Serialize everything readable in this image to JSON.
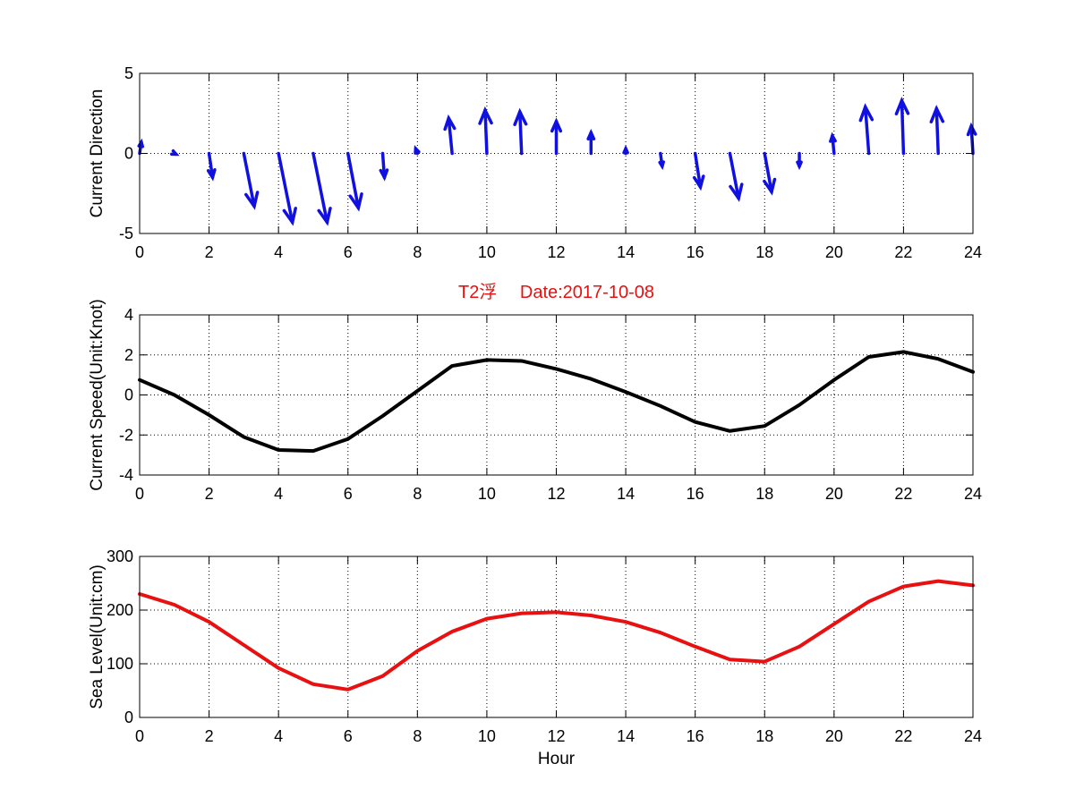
{
  "chart_data": [
    {
      "type": "quiver",
      "title": "",
      "xlabel": "",
      "ylabel": "Current Direction",
      "xlim": [
        0,
        24
      ],
      "ylim": [
        -5,
        5
      ],
      "xticks": [
        "0",
        "2",
        "4",
        "6",
        "8",
        "10",
        "12",
        "14",
        "16",
        "18",
        "20",
        "22",
        "24"
      ],
      "yticks": [
        "-5",
        "0",
        "5"
      ],
      "grid": true,
      "color": "#1010e0",
      "series": [
        {
          "x": [
            0,
            1,
            2,
            3,
            4,
            5,
            6,
            7,
            8,
            9,
            10,
            11,
            12,
            13,
            14,
            15,
            16,
            17,
            18,
            19,
            20,
            21,
            22,
            23,
            24
          ],
          "u": [
            0.05,
            0.05,
            0.1,
            0.3,
            0.4,
            0.4,
            0.3,
            0.05,
            -0.05,
            -0.1,
            -0.05,
            -0.05,
            0.0,
            0.0,
            0.0,
            0.05,
            0.15,
            0.25,
            0.2,
            0.0,
            -0.05,
            -0.1,
            -0.05,
            -0.05,
            -0.05
          ],
          "v": [
            0.7,
            -0.05,
            -1.5,
            -3.3,
            -4.3,
            -4.3,
            -3.4,
            -1.5,
            0.3,
            2.2,
            2.7,
            2.6,
            2.0,
            1.3,
            0.3,
            -0.8,
            -2.1,
            -2.8,
            -2.4,
            -0.8,
            1.1,
            2.9,
            3.3,
            2.8,
            1.7
          ]
        }
      ]
    },
    {
      "type": "line",
      "title": "T2浮　 Date:2017-10-08",
      "xlabel": "",
      "ylabel": "Current Speed(Unit:Knot)",
      "xlim": [
        0,
        24
      ],
      "ylim": [
        -4,
        4
      ],
      "xticks": [
        "0",
        "2",
        "4",
        "6",
        "8",
        "10",
        "12",
        "14",
        "16",
        "18",
        "20",
        "22",
        "24"
      ],
      "yticks": [
        "-4",
        "-2",
        "0",
        "2",
        "4"
      ],
      "grid": true,
      "color": "#000000",
      "series": [
        {
          "x": [
            0,
            1,
            2,
            3,
            4,
            5,
            6,
            7,
            8,
            9,
            10,
            11,
            12,
            13,
            14,
            15,
            16,
            17,
            18,
            19,
            20,
            21,
            22,
            23,
            24
          ],
          "y": [
            0.75,
            0.0,
            -1.0,
            -2.1,
            -2.75,
            -2.8,
            -2.2,
            -1.05,
            0.2,
            1.45,
            1.75,
            1.7,
            1.3,
            0.8,
            0.15,
            -0.55,
            -1.35,
            -1.8,
            -1.55,
            -0.5,
            0.75,
            1.9,
            2.15,
            1.8,
            1.15
          ]
        }
      ]
    },
    {
      "type": "line",
      "title": "",
      "xlabel": "Hour",
      "ylabel": "Sea Level(Unit:cm)",
      "xlim": [
        0,
        24
      ],
      "ylim": [
        0,
        300
      ],
      "xticks": [
        "0",
        "2",
        "4",
        "6",
        "8",
        "10",
        "12",
        "14",
        "16",
        "18",
        "20",
        "22",
        "24"
      ],
      "yticks": [
        "0",
        "100",
        "200",
        "300"
      ],
      "grid": true,
      "color": "#e81010",
      "series": [
        {
          "x": [
            0,
            1,
            2,
            3,
            4,
            5,
            6,
            7,
            8,
            9,
            10,
            11,
            12,
            13,
            14,
            15,
            16,
            17,
            18,
            19,
            20,
            21,
            22,
            23,
            24
          ],
          "y": [
            230,
            210,
            178,
            135,
            92,
            62,
            52,
            77,
            124,
            160,
            184,
            194,
            196,
            190,
            178,
            158,
            132,
            108,
            104,
            132,
            174,
            216,
            244,
            254,
            246
          ]
        }
      ]
    }
  ]
}
